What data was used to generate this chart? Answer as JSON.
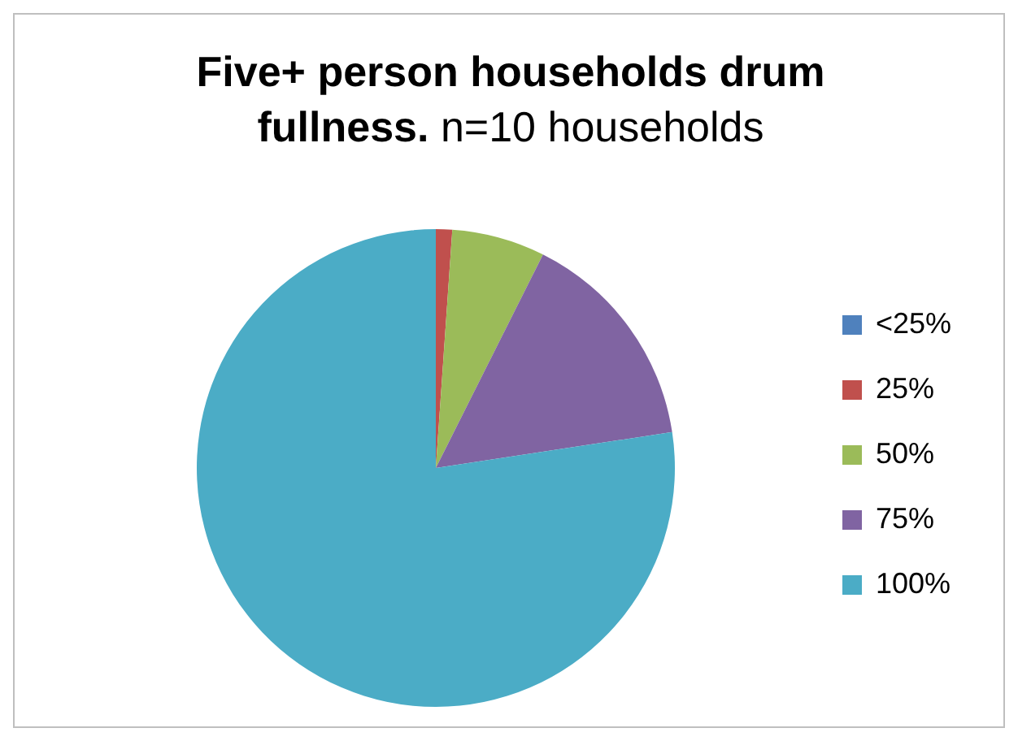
{
  "chart_data": {
    "type": "pie",
    "title": "Five+ person households drum fullness.",
    "subtitle": "n=10 households",
    "categories": [
      "<25%",
      "25%",
      "50%",
      "75%",
      "100%"
    ],
    "values": [
      0,
      1.1,
      6.3,
      15.2,
      77.4
    ],
    "colors": [
      "#4f81bd",
      "#c0504d",
      "#9bbb59",
      "#8064a2",
      "#4bacc6"
    ],
    "legend": "right"
  }
}
